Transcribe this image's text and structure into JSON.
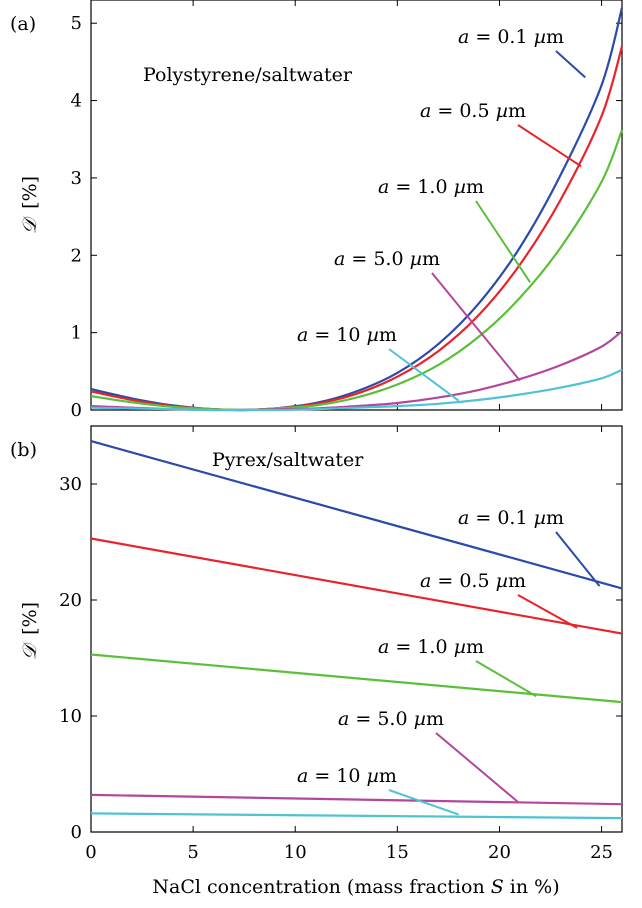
{
  "chart_data": [
    {
      "type": "line",
      "panel_label": "(a)",
      "annotation": "Polystyrene/saltwater",
      "ylabel_symbol": "𝒟",
      "ylabel_unit": "[%]",
      "xlim": [
        0,
        26
      ],
      "ylim": [
        0,
        5.3
      ],
      "xticks": [
        0,
        5,
        10,
        15,
        20,
        25
      ],
      "yticks": [
        0,
        1,
        2,
        3,
        4,
        5
      ],
      "grid": false,
      "series": [
        {
          "name": "a = 0.1 µm",
          "color": "#2b4ba8",
          "x": [
            0,
            2,
            4,
            6,
            7.5,
            9,
            11,
            13,
            15,
            17,
            19,
            21,
            23,
            25,
            26
          ],
          "y": [
            0.27,
            0.15,
            0.06,
            0.01,
            0.0,
            0.02,
            0.09,
            0.24,
            0.48,
            0.85,
            1.38,
            2.1,
            3.04,
            4.2,
            5.2
          ]
        },
        {
          "name": "a = 0.5 µm",
          "color": "#e8232a",
          "x": [
            0,
            2,
            4,
            6,
            7.5,
            9,
            11,
            13,
            15,
            17,
            19,
            21,
            23,
            25,
            26
          ],
          "y": [
            0.24,
            0.13,
            0.05,
            0.01,
            0.0,
            0.02,
            0.08,
            0.21,
            0.43,
            0.76,
            1.23,
            1.88,
            2.72,
            3.8,
            4.7
          ]
        },
        {
          "name": "a = 1.0 µm",
          "color": "#5cbf3a",
          "x": [
            0,
            2,
            4,
            6,
            7.5,
            9,
            11,
            13,
            15,
            17,
            19,
            21,
            23,
            25,
            26
          ],
          "y": [
            0.18,
            0.1,
            0.04,
            0.01,
            0.0,
            0.02,
            0.06,
            0.16,
            0.33,
            0.58,
            0.95,
            1.45,
            2.1,
            2.95,
            3.62
          ]
        },
        {
          "name": "a = 5.0 µm",
          "color": "#b3479e",
          "x": [
            0,
            2,
            4,
            6,
            7.5,
            9,
            11,
            13,
            15,
            17,
            19,
            21,
            23,
            25,
            26
          ],
          "y": [
            0.05,
            0.03,
            0.01,
            0.0,
            0.0,
            0.01,
            0.02,
            0.05,
            0.09,
            0.16,
            0.26,
            0.4,
            0.58,
            0.82,
            1.02
          ]
        },
        {
          "name": "a = 10 µm",
          "color": "#4fc3d6",
          "x": [
            0,
            2,
            4,
            6,
            7.5,
            9,
            11,
            13,
            15,
            17,
            19,
            21,
            23,
            25,
            26
          ],
          "y": [
            0.03,
            0.02,
            0.01,
            0.0,
            0.0,
            0.0,
            0.01,
            0.03,
            0.05,
            0.08,
            0.13,
            0.2,
            0.29,
            0.41,
            0.52
          ]
        }
      ],
      "annotations": [
        {
          "series": 0,
          "prefix": "a",
          "eq": " = 0.1 ",
          "unit_mu": "µ",
          "unit": "m",
          "point": [
            24.2,
            4.3
          ]
        },
        {
          "series": 1,
          "prefix": "a",
          "eq": " = 0.5 ",
          "unit_mu": "µ",
          "unit": "m",
          "point": [
            24.0,
            3.15
          ]
        },
        {
          "series": 2,
          "prefix": "a",
          "eq": " = 1.0 ",
          "unit_mu": "µ",
          "unit": "m",
          "point": [
            21.5,
            1.65
          ]
        },
        {
          "series": 3,
          "prefix": "a",
          "eq": " = 5.0 ",
          "unit_mu": "µ",
          "unit": "m",
          "point": [
            21.0,
            0.38
          ]
        },
        {
          "series": 4,
          "prefix": "a",
          "eq": " = 10 ",
          "unit_mu": "µ",
          "unit": "m",
          "point": [
            18.0,
            0.12
          ]
        }
      ]
    },
    {
      "type": "line",
      "panel_label": "(b)",
      "annotation": "Pyrex/saltwater",
      "ylabel_symbol": "𝒟",
      "ylabel_unit": "[%]",
      "xlabel_pre": "NaCl concentration (mass fraction ",
      "xlabel_var": "S",
      "xlabel_post": " in %)",
      "xlim": [
        0,
        26
      ],
      "ylim": [
        0,
        35
      ],
      "xticks": [
        0,
        5,
        10,
        15,
        20,
        25
      ],
      "yticks": [
        0,
        10,
        20,
        30
      ],
      "grid": false,
      "series": [
        {
          "name": "a = 0.1 µm",
          "color": "#2b4ba8",
          "x": [
            0,
            26
          ],
          "y": [
            33.7,
            21.0
          ]
        },
        {
          "name": "a = 0.5 µm",
          "color": "#e8232a",
          "x": [
            0,
            26
          ],
          "y": [
            25.3,
            17.1
          ]
        },
        {
          "name": "a = 1.0 µm",
          "color": "#5cbf3a",
          "x": [
            0,
            26
          ],
          "y": [
            15.3,
            11.2
          ]
        },
        {
          "name": "a = 5.0 µm",
          "color": "#b3479e",
          "x": [
            0,
            26
          ],
          "y": [
            3.2,
            2.4
          ]
        },
        {
          "name": "a = 10 µm",
          "color": "#4fc3d6",
          "x": [
            0,
            26
          ],
          "y": [
            1.6,
            1.2
          ]
        }
      ],
      "annotations": [
        {
          "series": 0,
          "prefix": "a",
          "eq": " = 0.1 ",
          "unit_mu": "µ",
          "unit": "m",
          "point": [
            24.9,
            21.2
          ]
        },
        {
          "series": 1,
          "prefix": "a",
          "eq": " = 0.5 ",
          "unit_mu": "µ",
          "unit": "m",
          "point": [
            23.8,
            17.6
          ]
        },
        {
          "series": 2,
          "prefix": "a",
          "eq": " = 1.0 ",
          "unit_mu": "µ",
          "unit": "m",
          "point": [
            21.8,
            11.7
          ]
        },
        {
          "series": 3,
          "prefix": "a",
          "eq": " = 5.0 ",
          "unit_mu": "µ",
          "unit": "m",
          "point": [
            20.9,
            2.6
          ]
        },
        {
          "series": 4,
          "prefix": "a",
          "eq": " = 10 ",
          "unit_mu": "µ",
          "unit": "m",
          "point": [
            18.0,
            1.5
          ]
        }
      ]
    }
  ]
}
